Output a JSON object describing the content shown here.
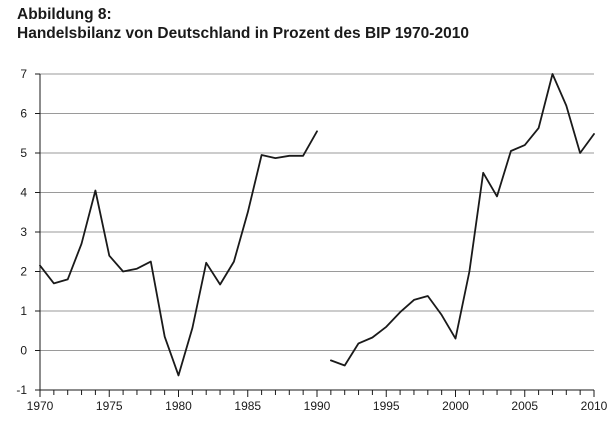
{
  "header": {
    "label": "Abbildung 8:",
    "title": "Handelsbilanz von Deutschland in Prozent des BIP 1970-2010"
  },
  "chart_data": {
    "type": "line",
    "title": "Handelsbilanz von Deutschland in Prozent des BIP 1970-2010",
    "xlabel": "",
    "ylabel": "",
    "xlim": [
      1970,
      2010
    ],
    "ylim": [
      -1,
      7
    ],
    "x_ticks": [
      1970,
      1975,
      1980,
      1985,
      1990,
      1995,
      2000,
      2005,
      2010
    ],
    "y_ticks": [
      -1,
      0,
      1,
      2,
      3,
      4,
      5,
      6,
      7
    ],
    "grid": true,
    "legend": "none",
    "colors": {
      "line": "#1a1a1a",
      "grid": "#9a9a9a",
      "axis": "#1a1a1a"
    },
    "series": [
      {
        "segments": [
          {
            "x": [
              1970,
              1971,
              1972,
              1973,
              1974,
              1975,
              1976,
              1977,
              1978,
              1979,
              1980,
              1981,
              1982,
              1983,
              1984,
              1985,
              1986,
              1987,
              1988,
              1989,
              1990
            ],
            "y": [
              2.15,
              1.7,
              1.8,
              2.7,
              4.05,
              2.4,
              2.0,
              2.07,
              2.25,
              0.35,
              -0.63,
              0.57,
              2.22,
              1.67,
              2.25,
              3.5,
              4.95,
              4.87,
              4.93,
              4.93,
              5.55
            ]
          },
          {
            "x": [
              1991,
              1992,
              1993,
              1994,
              1995,
              1996,
              1997,
              1998,
              1999,
              2000,
              2001,
              2002,
              2003,
              2004,
              2005,
              2006,
              2007,
              2008,
              2009,
              2010
            ],
            "y": [
              -0.25,
              -0.38,
              0.18,
              0.33,
              0.6,
              0.97,
              1.28,
              1.38,
              0.9,
              0.3,
              2.0,
              4.5,
              3.9,
              5.05,
              5.2,
              5.63,
              7.0,
              6.2,
              5.0,
              5.48
            ]
          }
        ]
      }
    ]
  }
}
